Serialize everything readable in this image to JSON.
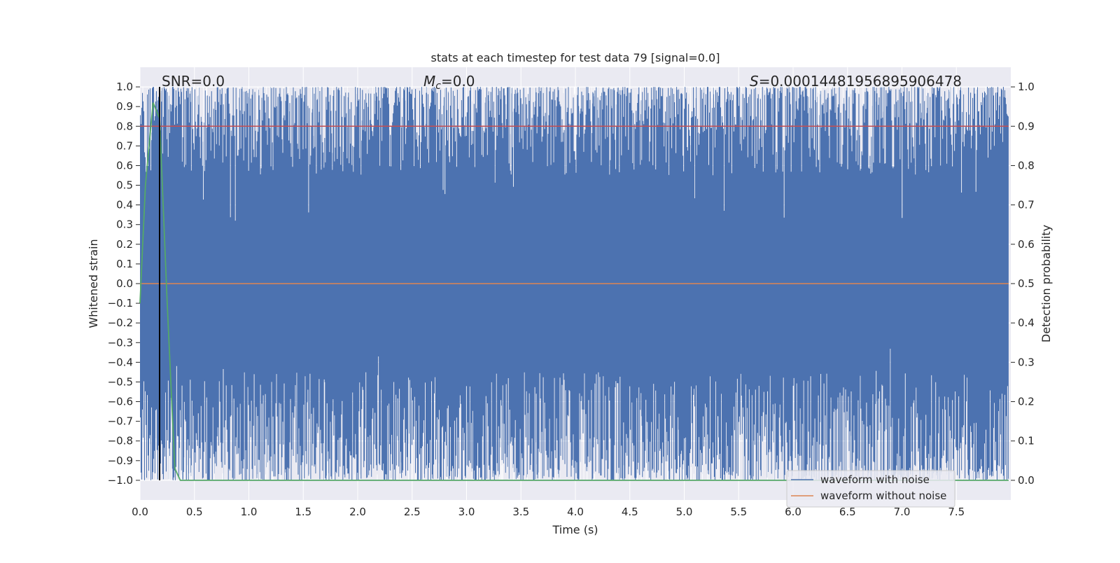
{
  "chart_data": {
    "type": "line",
    "title": "stats at each timestep for test data 79 [signal=0.0]",
    "xlabel": "Time (s)",
    "ylabel_left": "Whitened strain",
    "ylabel_right": "Detection probability",
    "xlim": [
      0.0,
      8.0
    ],
    "ylim_left": [
      -1.1,
      1.1
    ],
    "ylim_right": [
      -0.05,
      1.05
    ],
    "grid": true,
    "x_ticks": [
      "0.0",
      "0.5",
      "1.0",
      "1.5",
      "2.0",
      "2.5",
      "3.0",
      "3.5",
      "4.0",
      "4.5",
      "5.0",
      "5.5",
      "6.0",
      "6.5",
      "7.0",
      "7.5"
    ],
    "y_left_ticks": [
      "1.0",
      "0.9",
      "0.8",
      "0.7",
      "0.6",
      "0.5",
      "0.4",
      "0.3",
      "0.2",
      "0.1",
      "0.0",
      "−0.1",
      "−0.2",
      "−0.3",
      "−0.4",
      "−0.5",
      "−0.6",
      "−0.7",
      "−0.8",
      "−0.9",
      "−1.0"
    ],
    "y_right_ticks": [
      "1.0",
      "0.9",
      "0.8",
      "0.7",
      "0.6",
      "0.5",
      "0.4",
      "0.3",
      "0.2",
      "0.1",
      "0.0"
    ],
    "annotations": {
      "snr_text": "SNR=0.0",
      "mc_symbol": "M",
      "mc_subscript": "c",
      "mc_value": "=0.0",
      "s_symbol": "S",
      "s_value": "=0.00014481956895906478"
    },
    "series": [
      {
        "name": "waveform with noise",
        "color": "#4c72b0",
        "description": "dense noisy whitened strain spanning roughly -1.0 to 1.0 over 0-8 s",
        "range": [
          -1.0,
          1.0
        ]
      },
      {
        "name": "waveform without noise",
        "color": "#dd8452",
        "x": [
          0.0,
          7.98
        ],
        "y": [
          0.0,
          0.0
        ]
      },
      {
        "name": "detection probability",
        "color": "#55a868",
        "axis": "right",
        "x": [
          0.0,
          0.05,
          0.12,
          0.18,
          0.25,
          0.32,
          0.37,
          7.98
        ],
        "y": [
          0.45,
          0.75,
          0.96,
          0.92,
          0.45,
          0.03,
          0.0,
          0.0
        ]
      },
      {
        "name": "threshold",
        "color": "#c44e52",
        "axis": "right",
        "x": [
          0.0,
          7.98
        ],
        "y": [
          0.9,
          0.9
        ]
      }
    ],
    "vertical_line": {
      "x": 0.18,
      "color": "#000000"
    },
    "legend": {
      "placement": "lower-right",
      "entries": [
        {
          "label": "waveform with noise",
          "color": "#4c72b0"
        },
        {
          "label": "waveform without noise",
          "color": "#dd8452"
        }
      ]
    },
    "colors": {
      "axes_bg": "#eaeaf2",
      "grid": "#ffffff",
      "noise": "#4c72b0",
      "clean": "#dd8452",
      "prob": "#55a868",
      "threshold": "#c44e52"
    }
  }
}
